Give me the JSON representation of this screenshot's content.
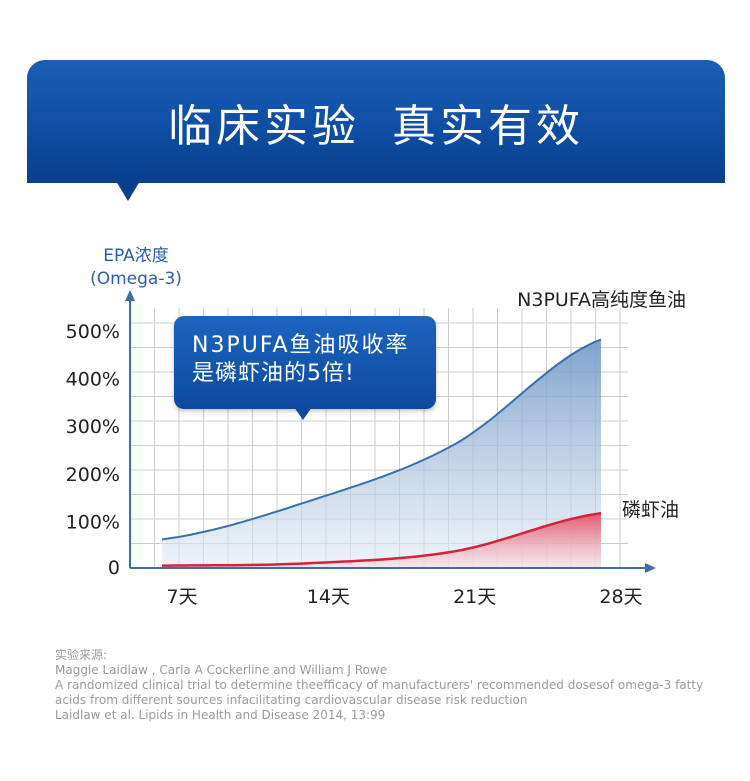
{
  "banner": {
    "title": "临床实验  真实有效"
  },
  "callout": {
    "line1": "N3PUFA鱼油吸收率",
    "line2": "是磷虾油的5倍!"
  },
  "y_axis_label": {
    "line1": "EPA浓度",
    "line2": "(Omega-3)"
  },
  "colors": {
    "banner": "#0e4ea3",
    "n3pufa_line": "#3a6fa8",
    "n3pufa_fill": "#c9d9ea",
    "krill_line": "#d2233a",
    "krill_fill": "#f4a7b0",
    "grid": "#cccccc",
    "axis": "#3a6fa8"
  },
  "chart_data": {
    "type": "area",
    "title": "",
    "xlabel": "",
    "ylabel": "EPA浓度 (Omega-3)",
    "categories": [
      "7天",
      "14天",
      "21天",
      "28天"
    ],
    "y_tick_labels": [
      "0",
      "100%",
      "200%",
      "300%",
      "400%",
      "500%"
    ],
    "y_ticks": [
      0,
      100,
      200,
      300,
      400,
      500
    ],
    "ylim": [
      0,
      500
    ],
    "grid": true,
    "series": [
      {
        "name": "N3PUFA高纯度鱼油",
        "x": [
          7,
          14,
          21,
          28
        ],
        "values": [
          60,
          140,
          260,
          480
        ]
      },
      {
        "name": "磷虾油",
        "x": [
          7,
          14,
          21,
          28
        ],
        "values": [
          5,
          10,
          35,
          115
        ]
      }
    ]
  },
  "source": {
    "heading": "实验来源:",
    "authors": "Maggie Laidlaw , Carla A Cockerline and William J Rowe",
    "title_line1": "A randomized clinical trial to determine theefficacy of manufacturers' recommended dosesof omega-3 fatty",
    "title_line2": "acids from different sources infacilitating cardiovascular disease risk reduction",
    "citation": "Laidlaw et al. Lipids in Health and Disease 2014, 13:99"
  }
}
